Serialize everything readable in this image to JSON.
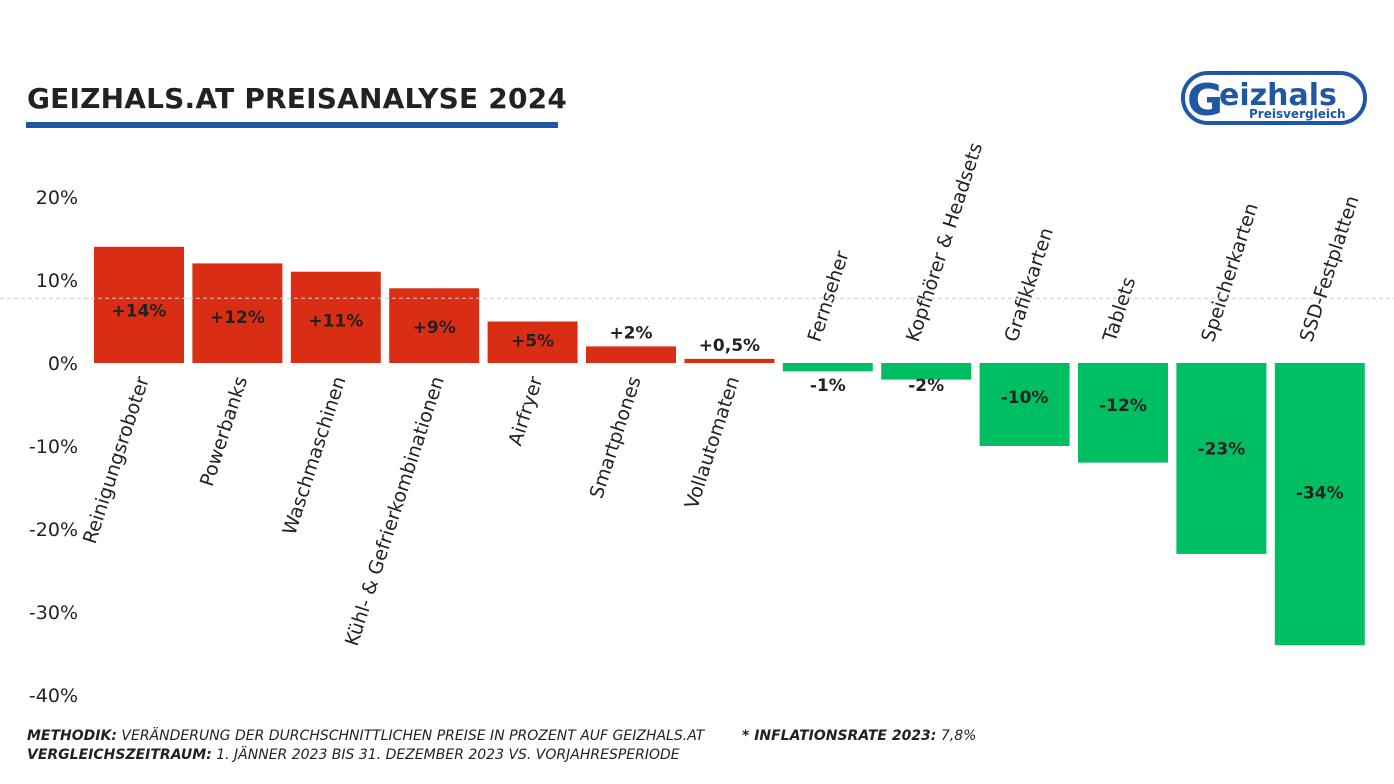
{
  "title": "GEIZHALS.AT PREISANALYSE 2024",
  "logo": {
    "text": "Geizhals",
    "subtext": "Preisvergleich",
    "color": "#1f57a6"
  },
  "footer": {
    "methodik_label": "METHODIK:",
    "methodik_text": "VERÄNDERUNG DER DURCHSCHNITTLICHEN PREISE IN PROZENT AUF GEIZHALS.AT",
    "zeitraum_label": "VERGLEICHSZEITRAUM:",
    "zeitraum_text": "1. JÄNNER 2023 BIS 31. DEZEMBER 2023 VS. VORJAHRESPERIODE",
    "inflation_label": "* INFLATIONSRATE 2023:",
    "inflation_text": "7,8%"
  },
  "chart_data": {
    "type": "bar",
    "categories": [
      "Reinigungsroboter",
      "Powerbanks",
      "Waschmaschinen",
      "Kühl-  & Gefrierkombinationen",
      "Airfryer",
      "Smartphones",
      "Vollautomaten",
      "Fernseher",
      "Kopfhörer & Headsets",
      "Grafikkarten",
      "Tablets",
      "Speicherkarten",
      "SSD-Festplatten"
    ],
    "values": [
      14,
      12,
      11,
      9,
      5,
      2,
      0.5,
      -1,
      -2,
      -10,
      -12,
      -23,
      -34
    ],
    "data_labels": [
      "+14%",
      "+12%",
      "+11%",
      "+9%",
      "+5%",
      "+2%",
      "+0,5%",
      "-1%",
      "-2%",
      "-10%",
      "-12%",
      "-23%",
      "-34%"
    ],
    "yticks": [
      20,
      10,
      0,
      -10,
      -20,
      -30,
      -40
    ],
    "ytick_labels": [
      "20%",
      "10%",
      "0%",
      "-10%",
      "-20%",
      "-30%",
      "-40%"
    ],
    "ylim": [
      -40,
      20
    ],
    "reference_line": {
      "value": 7.8,
      "style": "dashed"
    },
    "colors": {
      "positive": "#d92e14",
      "negative": "#00bf63",
      "reference": "#cccccc"
    },
    "grid": false,
    "legend": "none"
  }
}
